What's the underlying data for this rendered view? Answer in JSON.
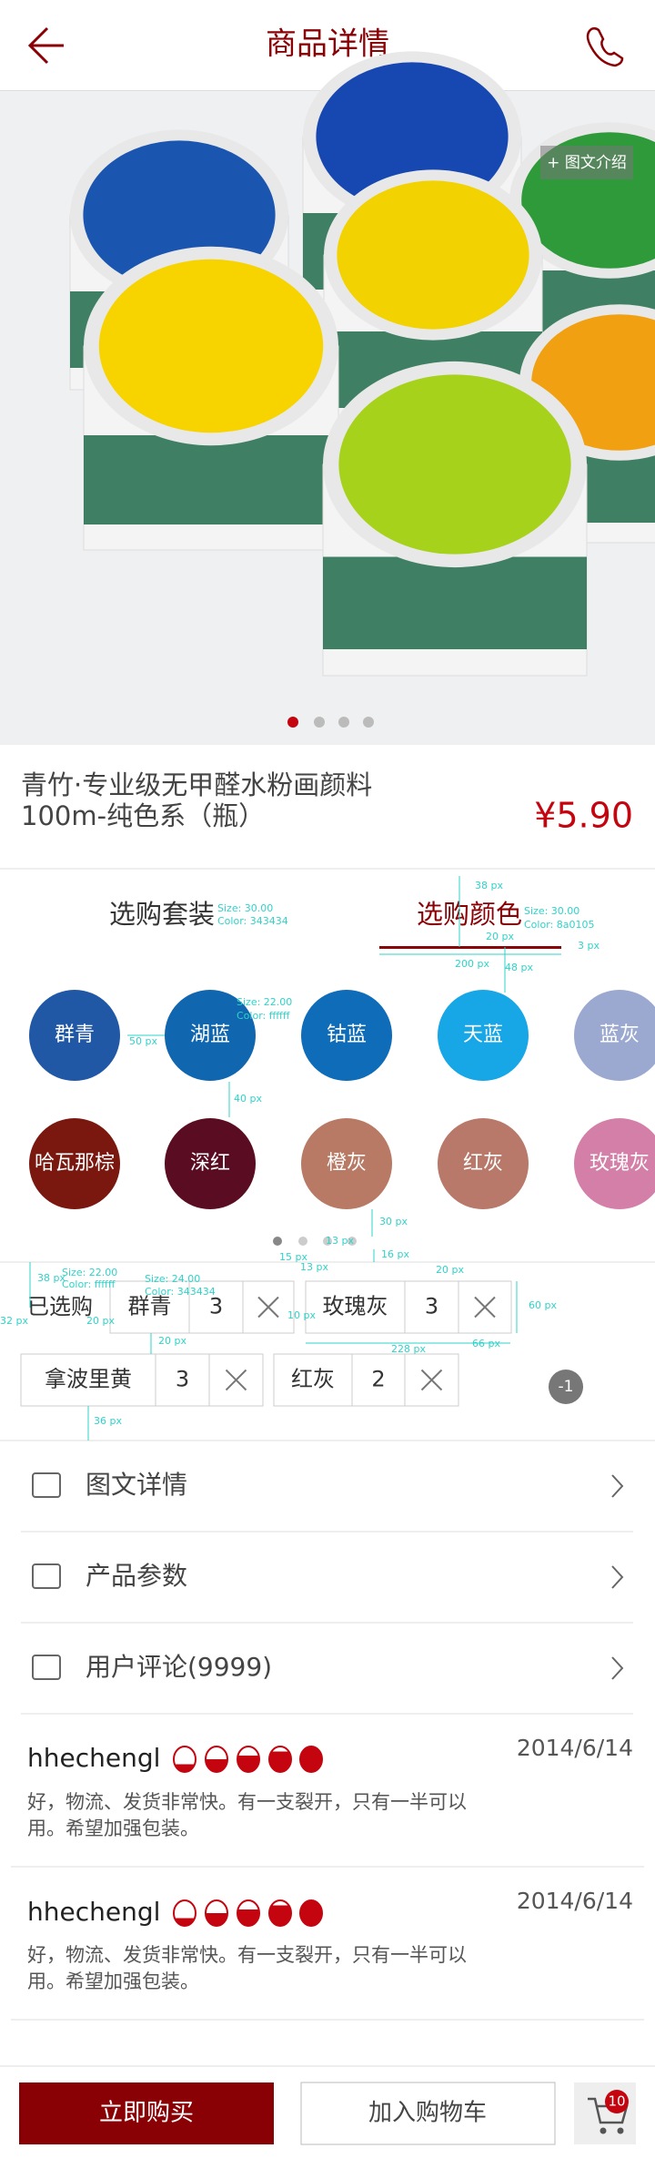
{
  "header": {
    "title": "商品详情"
  },
  "gallery": {
    "tag": "+ 图文介绍"
  },
  "product": {
    "name_lines": [
      "青竹·专业级无甲醛水粉画颜料",
      "100m-纯色系（瓶）"
    ],
    "price": "¥5.90"
  },
  "tabs": [
    "选购套装",
    "选购颜色"
  ],
  "colors": [
    {
      "name": "群青",
      "color": "#2158a6"
    },
    {
      "name": "湖蓝",
      "color": "#1166b0"
    },
    {
      "name": "钴蓝",
      "color": "#0e6cb9"
    },
    {
      "name": "天蓝",
      "color": "#17a6e6"
    },
    {
      "name": "蓝灰",
      "color": "#9ba9d0"
    },
    {
      "name": "哈瓦那棕",
      "color": "#7a1810"
    },
    {
      "name": "深红",
      "color": "#5a0d22"
    },
    {
      "name": "橙灰",
      "color": "#b87a64"
    },
    {
      "name": "红灰",
      "color": "#b8786a"
    },
    {
      "name": "玫瑰灰",
      "color": "#d47fa8"
    }
  ],
  "selected": {
    "label": "已选购",
    "items": [
      {
        "name": "群青",
        "qty": 3
      },
      {
        "name": "玫瑰灰",
        "qty": 3
      },
      {
        "name": "拿波里黄",
        "qty": 3
      },
      {
        "name": "红灰",
        "qty": 2
      }
    ],
    "badge": "-1"
  },
  "menu": [
    "图文详情",
    "产品参数",
    "用户评论(9999)"
  ],
  "reviews": [
    {
      "user": "hhechengl",
      "date": "2014/6/14",
      "text_lines": [
        "好，物流、发货非常快。有一支裂开，只有一半可以",
        "用。希望加强包装。"
      ]
    },
    {
      "user": "hhechengl",
      "date": "2014/6/14",
      "text_lines": [
        "好，物流、发货非常快。有一支裂开，只有一半可以",
        "用。希望加强包装。"
      ]
    }
  ],
  "actions": {
    "buy": "立即购买",
    "cart": "加入购物车",
    "cart_count": 10
  },
  "annotations": [
    "38 px",
    "Size: 30.00",
    "Color: 343434",
    "Size: 30.00",
    "Color: 8a0105",
    "20 px",
    "3 px",
    "200 px",
    "48 px",
    "Size: 22.00",
    "Color: ffffff",
    "50 px",
    "40 px",
    "30 px",
    "15 px",
    "13 px",
    "16 px",
    "13 px",
    "38 px",
    "Size: 22.00",
    "Color: ffffff",
    "Size: 24.00",
    "Color: 343434",
    "32 px",
    "20 px",
    "10 px",
    "20 px",
    "60 px",
    "66 px",
    "228 px",
    "20 px",
    "36 px"
  ]
}
